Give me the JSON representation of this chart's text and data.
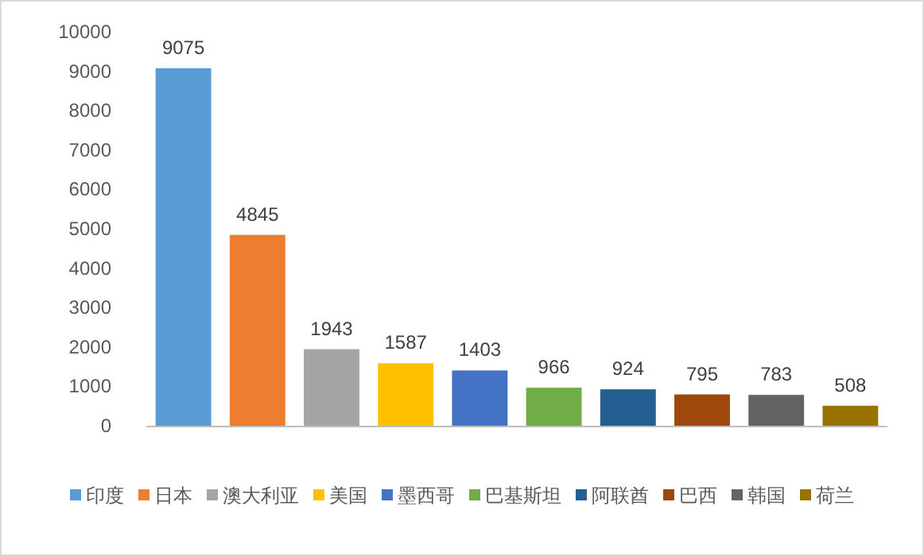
{
  "chart_data": {
    "type": "bar",
    "categories": [
      null,
      null,
      null,
      null,
      null,
      null,
      null,
      null,
      null,
      null
    ],
    "series": [
      {
        "name": "印度",
        "color": "#5b9bd5",
        "values": [
          9075,
          null,
          null,
          null,
          null,
          null,
          null,
          null,
          null,
          null
        ],
        "value_labels": [
          "9075",
          null,
          null,
          null,
          null,
          null,
          null,
          null,
          null,
          null
        ]
      },
      {
        "name": "日本",
        "color": "#ed7d31",
        "values": [
          null,
          4845,
          null,
          null,
          null,
          null,
          null,
          null,
          null,
          null
        ],
        "value_labels": [
          null,
          "4845",
          null,
          null,
          null,
          null,
          null,
          null,
          null,
          null
        ]
      },
      {
        "name": "澳大利亚",
        "color": "#a5a5a5",
        "values": [
          null,
          null,
          1943,
          null,
          null,
          null,
          null,
          null,
          null,
          null
        ],
        "value_labels": [
          null,
          null,
          "1943",
          null,
          null,
          null,
          null,
          null,
          null,
          null
        ]
      },
      {
        "name": "美国",
        "color": "#ffc000",
        "values": [
          null,
          null,
          null,
          1587,
          null,
          null,
          null,
          null,
          null,
          null
        ],
        "value_labels": [
          null,
          null,
          null,
          "1587",
          null,
          null,
          null,
          null,
          null,
          null
        ]
      },
      {
        "name": "墨西哥",
        "color": "#4472c4",
        "values": [
          null,
          null,
          null,
          null,
          1403,
          null,
          null,
          null,
          null,
          null
        ],
        "value_labels": [
          null,
          null,
          null,
          null,
          "1403",
          null,
          null,
          null,
          null,
          null
        ]
      },
      {
        "name": "巴基斯坦",
        "color": "#70ad47",
        "values": [
          null,
          null,
          null,
          null,
          null,
          966,
          null,
          null,
          null,
          null
        ],
        "value_labels": [
          null,
          null,
          null,
          null,
          null,
          "966",
          null,
          null,
          null,
          null
        ]
      },
      {
        "name": "阿联酋",
        "color": "#255e91",
        "values": [
          null,
          null,
          null,
          null,
          null,
          null,
          924,
          null,
          null,
          null
        ],
        "value_labels": [
          null,
          null,
          null,
          null,
          null,
          null,
          "924",
          null,
          null,
          null
        ]
      },
      {
        "name": "巴西",
        "color": "#9e480e",
        "values": [
          null,
          null,
          null,
          null,
          null,
          null,
          null,
          795,
          null,
          null
        ],
        "value_labels": [
          null,
          null,
          null,
          null,
          null,
          null,
          null,
          "795",
          null,
          null
        ]
      },
      {
        "name": "韩国",
        "color": "#636363",
        "values": [
          null,
          null,
          null,
          null,
          null,
          null,
          null,
          null,
          783,
          null
        ],
        "value_labels": [
          null,
          null,
          null,
          null,
          null,
          null,
          null,
          null,
          "783",
          null
        ]
      },
      {
        "name": "荷兰",
        "color": "#997300",
        "values": [
          null,
          null,
          null,
          null,
          null,
          null,
          null,
          null,
          null,
          508
        ],
        "value_labels": [
          null,
          null,
          null,
          null,
          null,
          null,
          null,
          null,
          null,
          "508"
        ]
      }
    ],
    "ylim": [
      0,
      10000
    ],
    "yticks": [
      0,
      1000,
      2000,
      3000,
      4000,
      5000,
      6000,
      7000,
      8000,
      9000,
      10000
    ],
    "legend": "bottom",
    "tick_labels": "y",
    "grid": false
  }
}
